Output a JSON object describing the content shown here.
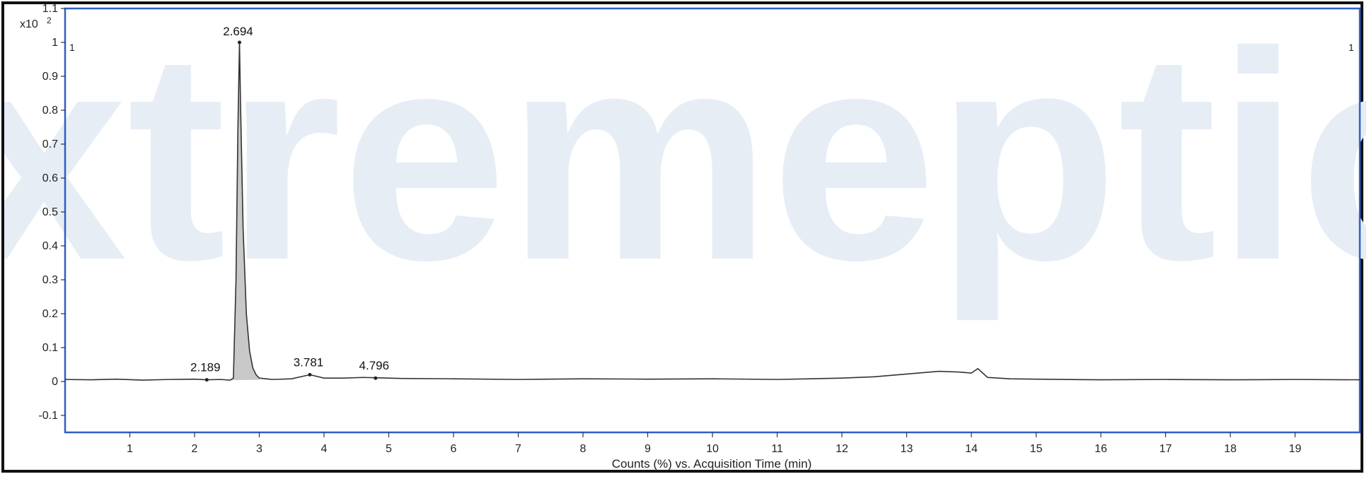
{
  "chart_data": {
    "type": "line",
    "title": "",
    "xlabel": "Counts (%) vs. Acquisition Time (min)",
    "ylabel": "",
    "y_multiplier_label": "x10",
    "y_multiplier_exponent": "2",
    "trace_labels": {
      "left": "1",
      "right": "1"
    },
    "watermark": "xtremeptic",
    "xlim": [
      0,
      20
    ],
    "ylim": [
      -0.15,
      1.1
    ],
    "x_ticks": [
      "1",
      "2",
      "3",
      "4",
      "5",
      "6",
      "7",
      "8",
      "9",
      "10",
      "11",
      "12",
      "13",
      "14",
      "15",
      "16",
      "17",
      "18",
      "19"
    ],
    "y_ticks": [
      "1.1",
      "1",
      "0.9",
      "0.8",
      "0.7",
      "0.6",
      "0.5",
      "0.4",
      "0.3",
      "0.2",
      "0.1",
      "0",
      "-0.1"
    ],
    "peaks": [
      {
        "label": "2.189",
        "x": 2.189,
        "y": 0.005
      },
      {
        "label": "2.694",
        "x": 2.694,
        "y": 1.0
      },
      {
        "label": "3.781",
        "x": 3.781,
        "y": 0.02
      },
      {
        "label": "4.796",
        "x": 4.796,
        "y": 0.01
      }
    ],
    "series": [
      {
        "values_xy": [
          [
            0,
            0.006
          ],
          [
            0.4,
            0.005
          ],
          [
            0.8,
            0.007
          ],
          [
            1.2,
            0.004
          ],
          [
            1.6,
            0.006
          ],
          [
            2.0,
            0.007
          ],
          [
            2.189,
            0.005
          ],
          [
            2.4,
            0.006
          ],
          [
            2.55,
            0.004
          ],
          [
            2.6,
            0.01
          ],
          [
            2.64,
            0.3
          ],
          [
            2.67,
            0.75
          ],
          [
            2.694,
            1.0
          ],
          [
            2.71,
            0.82
          ],
          [
            2.75,
            0.45
          ],
          [
            2.8,
            0.2
          ],
          [
            2.85,
            0.09
          ],
          [
            2.9,
            0.04
          ],
          [
            2.95,
            0.02
          ],
          [
            3.0,
            0.01
          ],
          [
            3.2,
            0.006
          ],
          [
            3.5,
            0.008
          ],
          [
            3.781,
            0.02
          ],
          [
            4.0,
            0.01
          ],
          [
            4.3,
            0.01
          ],
          [
            4.6,
            0.012
          ],
          [
            4.796,
            0.011
          ],
          [
            5.2,
            0.009
          ],
          [
            6.0,
            0.008
          ],
          [
            7.0,
            0.006
          ],
          [
            8.0,
            0.008
          ],
          [
            9.0,
            0.007
          ],
          [
            10.0,
            0.008
          ],
          [
            11.0,
            0.006
          ],
          [
            12.0,
            0.01
          ],
          [
            12.5,
            0.014
          ],
          [
            13.0,
            0.022
          ],
          [
            13.5,
            0.03
          ],
          [
            13.8,
            0.028
          ],
          [
            14.0,
            0.025
          ],
          [
            14.1,
            0.038
          ],
          [
            14.25,
            0.012
          ],
          [
            14.6,
            0.008
          ],
          [
            15.0,
            0.007
          ],
          [
            16.0,
            0.005
          ],
          [
            17.0,
            0.006
          ],
          [
            18.0,
            0.005
          ],
          [
            19.0,
            0.006
          ],
          [
            20.0,
            0.005
          ]
        ]
      }
    ],
    "colors": {
      "trace": "#333333",
      "peak_fill": "#c8c8c8",
      "plot_border": "#2f5fc4",
      "watermark": "#e6edf5"
    }
  }
}
